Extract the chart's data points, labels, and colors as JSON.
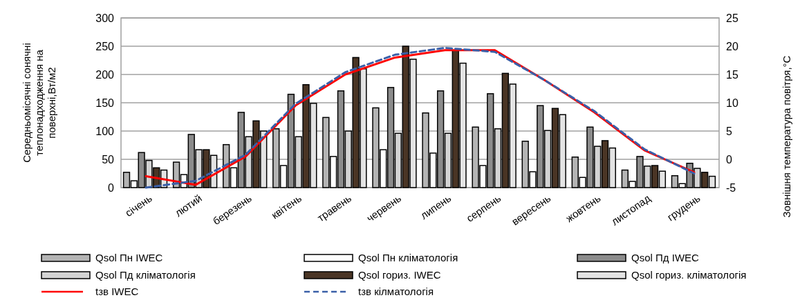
{
  "chart_data": {
    "type": "bar",
    "ylabel": "Середньомісячні сонячні теплонадходження на поверхні,Вт/м2",
    "y2label": "Зовнішня температура  повітря,°С",
    "categories": [
      "січень",
      "лютий",
      "березень",
      "квітень",
      "травень",
      "червень",
      "липень",
      "серпень",
      "вересень",
      "жовтень",
      "листопад",
      "грудень"
    ],
    "series": [
      {
        "name": "Qsol Пн IWEC",
        "color": "#b4b4b4",
        "values": [
          27,
          45,
          76,
          104,
          124,
          141,
          132,
          107,
          82,
          54,
          31,
          21
        ]
      },
      {
        "name": "Qsol Пн кліматологія",
        "color": "#ffffff",
        "values": [
          12,
          23,
          35,
          39,
          55,
          67,
          61,
          39,
          28,
          18,
          11,
          7
        ]
      },
      {
        "name": "Qsol Пд IWEC",
        "color": "#8c8c8c",
        "values": [
          62,
          94,
          133,
          165,
          171,
          177,
          171,
          166,
          145,
          107,
          55,
          43
        ]
      },
      {
        "name": "Qsol Пд кліматологія",
        "color": "#d4d4d4",
        "values": [
          48,
          67,
          90,
          90,
          100,
          96,
          96,
          104,
          101,
          73,
          38,
          34
        ]
      },
      {
        "name": "Qsol гориз. IWEC",
        "color": "#4a3525",
        "values": [
          35,
          67,
          118,
          182,
          230,
          250,
          243,
          202,
          140,
          83,
          39,
          27
        ]
      },
      {
        "name": "Qsol гориз. кліматологія",
        "color": "#e4e4e4",
        "values": [
          31,
          57,
          100,
          149,
          210,
          227,
          220,
          183,
          129,
          70,
          29,
          20
        ]
      },
      {
        "name": "tзв IWEC",
        "type": "line",
        "axis": "y2",
        "color": "#ff0000",
        "line_style": "solid",
        "values": [
          -3,
          -4.5,
          0.5,
          9.5,
          15,
          18,
          19.3,
          19.3,
          14,
          8.3,
          1.6,
          -2.3
        ]
      },
      {
        "name": "tзв кілматологія",
        "type": "line",
        "axis": "y2",
        "color": "#3a5fa8",
        "line_style": "dashed",
        "values": [
          -5,
          -3.8,
          0.8,
          9.8,
          15.4,
          18.5,
          19.7,
          19,
          14,
          8.5,
          1.8,
          -2.5
        ]
      }
    ],
    "ylim": [
      0,
      300
    ],
    "yticks": [
      0,
      50,
      100,
      150,
      200,
      250,
      300
    ],
    "y2lim": [
      -5,
      25
    ],
    "y2ticks": [
      -5,
      0,
      5,
      10,
      15,
      20,
      25
    ],
    "grid": "y",
    "legend": "bottom"
  }
}
